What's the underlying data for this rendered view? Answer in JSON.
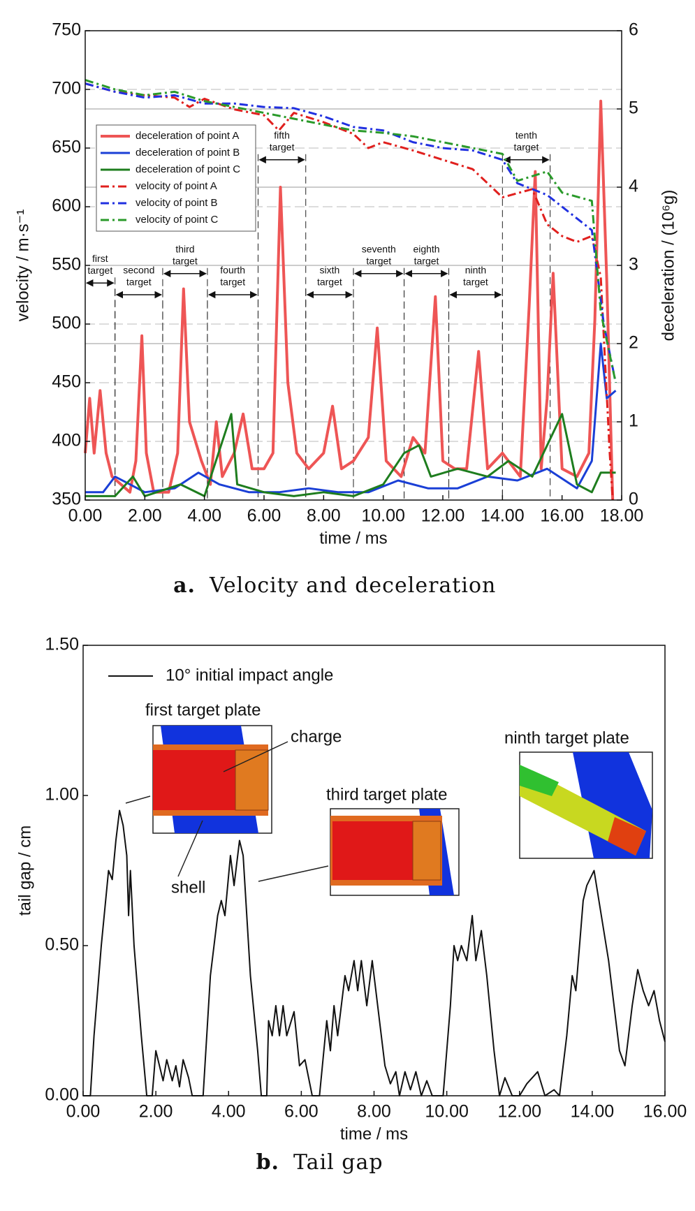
{
  "chart_data": [
    {
      "type": "line",
      "caption_label": "a.",
      "caption": "Velocity and deceleration",
      "xlabel": "time / ms",
      "ylabel": "velocity / m·s⁻¹",
      "y2label": "deceleration / (10⁶g)",
      "xlim": [
        0,
        18
      ],
      "ylim": [
        350,
        750
      ],
      "y2lim": [
        0,
        6
      ],
      "xticks": [
        {
          "value": 0,
          "label": "0.00"
        },
        {
          "value": 2,
          "label": "2.00"
        },
        {
          "value": 4,
          "label": "4.00"
        },
        {
          "value": 6,
          "label": "6.00"
        },
        {
          "value": 8,
          "label": "8.00"
        },
        {
          "value": 10,
          "label": "10.00"
        },
        {
          "value": 12,
          "label": "12.00"
        },
        {
          "value": 14,
          "label": "14.00"
        },
        {
          "value": 16,
          "label": "16.00"
        },
        {
          "value": 18,
          "label": "18.00"
        }
      ],
      "yticks": [
        350,
        400,
        450,
        500,
        550,
        600,
        650,
        700,
        750
      ],
      "y2ticks": [
        0,
        1,
        2,
        3,
        4,
        5,
        6
      ],
      "grid": true,
      "legend": "upper left",
      "series": [
        {
          "name": "deceleration of point A",
          "color": "#ee5555",
          "style": "solid",
          "width": 4,
          "axis": "y2",
          "x": [
            0,
            0.15,
            0.3,
            0.5,
            0.7,
            0.9,
            1.2,
            1.5,
            1.7,
            1.9,
            2.05,
            2.3,
            2.8,
            3.1,
            3.3,
            3.5,
            3.9,
            4.2,
            4.4,
            4.6,
            5.0,
            5.3,
            5.6,
            6.0,
            6.3,
            6.55,
            6.8,
            7.1,
            7.5,
            8.0,
            8.3,
            8.6,
            9.0,
            9.5,
            9.8,
            10.1,
            10.6,
            11.0,
            11.4,
            11.75,
            12.0,
            12.4,
            12.8,
            13.2,
            13.5,
            14.0,
            14.6,
            14.9,
            15.1,
            15.3,
            15.5,
            15.7,
            16.0,
            16.5,
            16.9,
            17.1,
            17.3,
            17.5,
            17.7
          ],
          "values": [
            0.6,
            1.3,
            0.6,
            1.4,
            0.6,
            0.3,
            0.2,
            0.1,
            0.5,
            2.1,
            0.6,
            0.1,
            0.1,
            0.6,
            2.7,
            1.0,
            0.5,
            0.2,
            1.0,
            0.3,
            0.6,
            1.1,
            0.4,
            0.4,
            0.6,
            4.0,
            1.5,
            0.6,
            0.4,
            0.6,
            1.2,
            0.4,
            0.5,
            0.8,
            2.2,
            0.5,
            0.3,
            0.8,
            0.6,
            2.6,
            0.5,
            0.4,
            0.4,
            1.9,
            0.4,
            0.6,
            0.3,
            2.5,
            4.2,
            0.4,
            1.3,
            2.9,
            0.4,
            0.3,
            0.6,
            2.3,
            5.1,
            2.8,
            0
          ]
        },
        {
          "name": "deceleration of point B",
          "color": "#1a3fd6",
          "style": "solid",
          "width": 3,
          "axis": "y2",
          "x": [
            0,
            0.6,
            1.0,
            1.5,
            2.0,
            3.0,
            3.8,
            4.5,
            5.5,
            6.5,
            7.5,
            8.5,
            9.5,
            10.5,
            11.5,
            12.5,
            13.5,
            14.5,
            15.5,
            16.5,
            17.0,
            17.3,
            17.5,
            17.8
          ],
          "values": [
            0.1,
            0.1,
            0.3,
            0.2,
            0.1,
            0.15,
            0.35,
            0.2,
            0.1,
            0.1,
            0.15,
            0.1,
            0.1,
            0.25,
            0.15,
            0.15,
            0.3,
            0.25,
            0.4,
            0.15,
            0.5,
            2.0,
            1.3,
            1.4
          ]
        },
        {
          "name": "deceleration of point C",
          "color": "#1e7d1e",
          "style": "solid",
          "width": 3,
          "axis": "y2",
          "x": [
            0,
            1.0,
            1.6,
            2.0,
            3.2,
            4.0,
            4.9,
            5.1,
            6.0,
            7.0,
            8.0,
            9.0,
            10.0,
            10.7,
            11.2,
            11.6,
            12.5,
            13.5,
            14.2,
            15.0,
            16.0,
            16.5,
            17.0,
            17.3,
            17.8
          ],
          "values": [
            0.05,
            0.05,
            0.3,
            0.05,
            0.2,
            0.05,
            1.1,
            0.2,
            0.1,
            0.05,
            0.1,
            0.05,
            0.2,
            0.6,
            0.7,
            0.3,
            0.4,
            0.3,
            0.5,
            0.3,
            1.1,
            0.2,
            0.1,
            0.35,
            0.35
          ]
        },
        {
          "name": "velocity of point A",
          "color": "#e0201e",
          "style": "dashdot",
          "width": 3,
          "axis": "y",
          "x": [
            0,
            1.0,
            2.0,
            3.0,
            3.5,
            4.0,
            5.0,
            6.0,
            6.5,
            7.0,
            8.0,
            9.0,
            9.5,
            10.0,
            11.0,
            12.0,
            13.0,
            14.0,
            15.0,
            15.5,
            16.0,
            16.5,
            17.0,
            17.3,
            17.6,
            17.7
          ],
          "values": [
            705,
            698,
            695,
            693,
            685,
            692,
            683,
            678,
            665,
            680,
            672,
            662,
            650,
            655,
            648,
            640,
            632,
            608,
            615,
            585,
            575,
            570,
            575,
            540,
            390,
            350
          ]
        },
        {
          "name": "velocity of point B",
          "color": "#2030e0",
          "style": "dashdot",
          "width": 3,
          "axis": "y",
          "x": [
            0,
            1.0,
            2.0,
            3.0,
            4.0,
            5.0,
            6.0,
            7.0,
            8.0,
            9.0,
            10.0,
            11.0,
            12.0,
            13.0,
            14.0,
            14.5,
            15.5,
            16.5,
            17.0,
            17.4,
            17.8
          ],
          "values": [
            705,
            698,
            693,
            695,
            688,
            688,
            685,
            684,
            677,
            668,
            665,
            655,
            650,
            648,
            640,
            620,
            610,
            590,
            580,
            500,
            450
          ]
        },
        {
          "name": "velocity of point C",
          "color": "#2a9a2a",
          "style": "dashdot",
          "width": 3,
          "axis": "y",
          "x": [
            0,
            1.0,
            2.0,
            3.0,
            4.0,
            5.0,
            6.0,
            7.0,
            8.0,
            9.0,
            10.0,
            11.0,
            12.0,
            13.0,
            14.0,
            14.5,
            15.5,
            16.0,
            17.0,
            17.3,
            17.8
          ],
          "values": [
            708,
            700,
            695,
            698,
            690,
            685,
            680,
            675,
            670,
            665,
            663,
            660,
            655,
            650,
            645,
            622,
            630,
            612,
            605,
            510,
            450
          ]
        }
      ],
      "annotations": [
        {
          "lines": [
            "first",
            "target"
          ],
          "x_start": 0,
          "x_end": 1.0,
          "y": 535
        },
        {
          "lines": [
            "second",
            "target"
          ],
          "x_start": 1.0,
          "x_end": 2.6,
          "y": 525
        },
        {
          "lines": [
            "third",
            "target"
          ],
          "x_start": 2.6,
          "x_end": 4.1,
          "y": 543
        },
        {
          "lines": [
            "fourth",
            "target"
          ],
          "x_start": 4.1,
          "x_end": 5.8,
          "y": 525
        },
        {
          "lines": [
            "fifth",
            "target"
          ],
          "x_start": 5.8,
          "x_end": 7.4,
          "y": 640
        },
        {
          "lines": [
            "sixth",
            "target"
          ],
          "x_start": 7.4,
          "x_end": 9.0,
          "y": 525
        },
        {
          "lines": [
            "seventh",
            "target"
          ],
          "x_start": 9.0,
          "x_end": 10.7,
          "y": 543
        },
        {
          "lines": [
            "eighth",
            "target"
          ],
          "x_start": 10.7,
          "x_end": 12.2,
          "y": 543
        },
        {
          "lines": [
            "ninth",
            "target"
          ],
          "x_start": 12.2,
          "x_end": 14.0,
          "y": 525
        },
        {
          "lines": [
            "tenth",
            "target"
          ],
          "x_start": 14.0,
          "x_end": 15.6,
          "y": 640
        }
      ]
    },
    {
      "type": "line",
      "caption_label": "b.",
      "caption": "Tail gap",
      "xlabel": "time / ms",
      "ylabel": "tail gap / cm",
      "xlim": [
        0,
        16
      ],
      "ylim": [
        0,
        1.5
      ],
      "xticks": [
        {
          "value": 0,
          "label": "0.00"
        },
        {
          "value": 2,
          "label": "2.00"
        },
        {
          "value": 4,
          "label": "4.00"
        },
        {
          "value": 6,
          "label": "6.00"
        },
        {
          "value": 8,
          "label": "8.00"
        },
        {
          "value": 10,
          "label": "10.00"
        },
        {
          "value": 12,
          "label": "12.00"
        },
        {
          "value": 14,
          "label": "14.00"
        },
        {
          "value": 16,
          "label": "16.00"
        }
      ],
      "yticks": [
        {
          "value": 0,
          "label": "0.00"
        },
        {
          "value": 0.5,
          "label": "0.50"
        },
        {
          "value": 1,
          "label": "1.00"
        },
        {
          "value": 1.5,
          "label": "1.50"
        }
      ],
      "grid": false,
      "legend": "upper left",
      "series": [
        {
          "name": "10° initial impact angle",
          "color": "#111111",
          "style": "solid",
          "width": 2,
          "axis": "y",
          "x": [
            0,
            0.2,
            0.3,
            0.5,
            0.7,
            0.8,
            0.9,
            1.0,
            1.1,
            1.2,
            1.25,
            1.3,
            1.4,
            1.6,
            1.75,
            1.9,
            2.0,
            2.1,
            2.2,
            2.3,
            2.45,
            2.55,
            2.65,
            2.75,
            2.9,
            3.0,
            3.3,
            3.5,
            3.7,
            3.8,
            3.9,
            4.05,
            4.15,
            4.3,
            4.4,
            4.6,
            4.8,
            4.9,
            5.05,
            5.1,
            5.2,
            5.3,
            5.4,
            5.5,
            5.6,
            5.8,
            5.95,
            6.1,
            6.3,
            6.5,
            6.7,
            6.8,
            6.9,
            7.0,
            7.2,
            7.3,
            7.45,
            7.55,
            7.65,
            7.8,
            7.95,
            8.1,
            8.3,
            8.45,
            8.6,
            8.7,
            8.85,
            9.0,
            9.15,
            9.3,
            9.45,
            9.6,
            9.9,
            10.1,
            10.2,
            10.3,
            10.4,
            10.55,
            10.7,
            10.8,
            10.95,
            11.1,
            11.3,
            11.45,
            11.6,
            11.8,
            12.0,
            12.2,
            12.5,
            12.7,
            12.95,
            13.1,
            13.3,
            13.45,
            13.55,
            13.65,
            13.75,
            13.85,
            14.05,
            14.25,
            14.45,
            14.6,
            14.75,
            14.9,
            15.0,
            15.1,
            15.25,
            15.4,
            15.55,
            15.7,
            15.85,
            16.0
          ],
          "values": [
            0,
            0,
            0.2,
            0.5,
            0.75,
            0.72,
            0.85,
            0.95,
            0.9,
            0.8,
            0.6,
            0.75,
            0.5,
            0.2,
            0,
            0,
            0.15,
            0.1,
            0.05,
            0.12,
            0.05,
            0.1,
            0.03,
            0.12,
            0.06,
            0,
            0,
            0.4,
            0.6,
            0.65,
            0.6,
            0.8,
            0.7,
            0.85,
            0.8,
            0.4,
            0.15,
            0,
            0,
            0.25,
            0.2,
            0.3,
            0.2,
            0.3,
            0.2,
            0.28,
            0.1,
            0.12,
            0,
            0,
            0.25,
            0.15,
            0.3,
            0.2,
            0.4,
            0.35,
            0.45,
            0.35,
            0.45,
            0.3,
            0.45,
            0.3,
            0.1,
            0.04,
            0.08,
            0,
            0.08,
            0.02,
            0.08,
            0,
            0.05,
            0,
            0,
            0.3,
            0.5,
            0.45,
            0.5,
            0.45,
            0.6,
            0.45,
            0.55,
            0.4,
            0.15,
            0,
            0.06,
            0,
            0,
            0.04,
            0.08,
            0,
            0.02,
            0,
            0.2,
            0.4,
            0.35,
            0.5,
            0.65,
            0.7,
            0.75,
            0.6,
            0.45,
            0.3,
            0.15,
            0.1,
            0.2,
            0.3,
            0.42,
            0.35,
            0.3,
            0.35,
            0.25,
            0.18
          ]
        }
      ],
      "annotations": [
        "first target plate",
        "charge",
        "shell",
        "third target plate",
        "ninth target plate"
      ]
    }
  ]
}
